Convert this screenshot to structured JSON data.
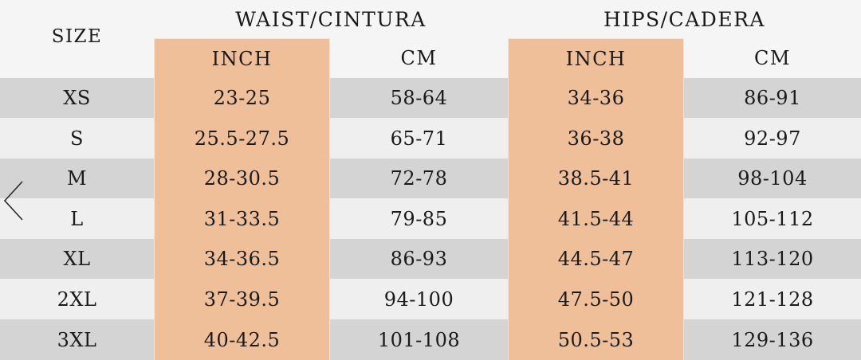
{
  "table": {
    "size_header": "SIZE",
    "groups": [
      "WAIST/CINTURA",
      "HIPS/CADERA"
    ],
    "units": [
      "INCH",
      "CM",
      "INCH",
      "CM"
    ],
    "rows": [
      {
        "size": "XS",
        "waist_inch": "23-25",
        "waist_cm": "58-64",
        "hips_inch": "34-36",
        "hips_cm": "86-91"
      },
      {
        "size": "S",
        "waist_inch": "25.5-27.5",
        "waist_cm": "65-71",
        "hips_inch": "36-38",
        "hips_cm": "92-97"
      },
      {
        "size": "M",
        "waist_inch": "28-30.5",
        "waist_cm": "72-78",
        "hips_inch": "38.5-41",
        "hips_cm": "98-104"
      },
      {
        "size": "L",
        "waist_inch": "31-33.5",
        "waist_cm": "79-85",
        "hips_inch": "41.5-44",
        "hips_cm": "105-112"
      },
      {
        "size": "XL",
        "waist_inch": "34-36.5",
        "waist_cm": "86-93",
        "hips_inch": "44.5-47",
        "hips_cm": "113-120"
      },
      {
        "size": "2XL",
        "waist_inch": "37-39.5",
        "waist_cm": "94-100",
        "hips_inch": "47.5-50",
        "hips_cm": "121-128"
      },
      {
        "size": "3XL",
        "waist_inch": "40-42.5",
        "waist_cm": "101-108",
        "hips_inch": "50.5-53",
        "hips_cm": "129-136"
      }
    ]
  },
  "nav": {
    "icon": "chevron-left-icon"
  },
  "colors": {
    "peach": "#efbf9a",
    "row_gray": "#d4d4d4",
    "row_light": "#efefef"
  }
}
